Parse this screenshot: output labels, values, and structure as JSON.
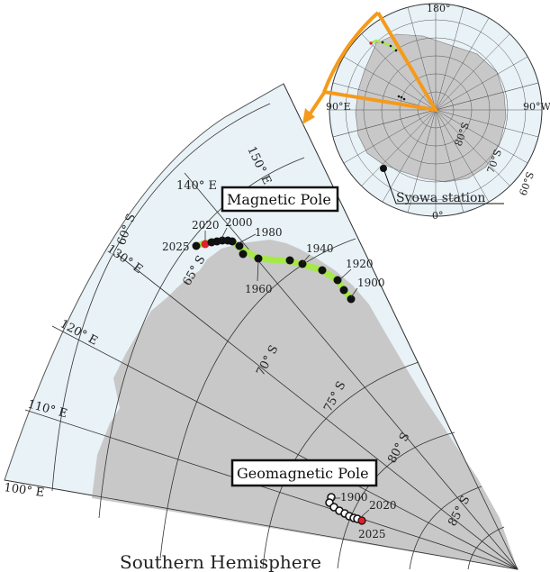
{
  "title": "Southern Hemisphere",
  "magnetic_pole": {
    "label": "Magnetic Pole",
    "years": [
      "2025",
      "2020",
      "2000",
      "1980",
      "1960",
      "1940",
      "1920",
      "1900"
    ]
  },
  "geomagnetic_pole": {
    "label": "Geomagnetic Pole",
    "years": [
      "1900",
      "2020",
      "2025"
    ]
  },
  "longitudes": [
    "150° E",
    "140° E",
    "130° E",
    "120° E",
    "110° E",
    "100° E"
  ],
  "latitudes": [
    "60° S",
    "65° S",
    "70° S",
    "75° S",
    "80° S",
    "85° S"
  ],
  "inset": {
    "labels": [
      "180°",
      "90°E",
      "90°W",
      "0°",
      "80°S",
      "70°S",
      "60°S"
    ],
    "station": "Syowa station"
  },
  "colors": {
    "land": "#c8c8c8",
    "ocean": "#e8f2f7",
    "track": "#a6e84a",
    "highlight": "#e0202a",
    "sector": "#f59a1b"
  }
}
